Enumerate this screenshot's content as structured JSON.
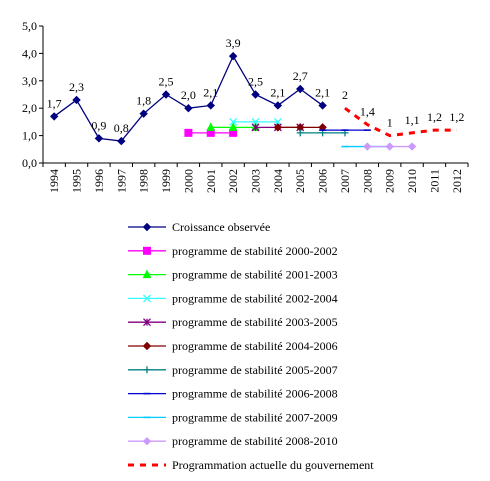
{
  "chart_data": {
    "type": "line",
    "title": "",
    "xlabel": "",
    "ylabel": "",
    "x": [
      "1994",
      "1995",
      "1996",
      "1997",
      "1998",
      "1999",
      "2000",
      "2001",
      "2002",
      "2003",
      "2004",
      "2005",
      "2006",
      "2007",
      "2008",
      "2009",
      "2010",
      "2011",
      "2012"
    ],
    "ylim": [
      0,
      5
    ],
    "yticks": [
      "0,0",
      "1,0",
      "2,0",
      "3,0",
      "4,0",
      "5,0"
    ],
    "grid": false,
    "legend_position": "bottom",
    "series": [
      {
        "name": "Croissance observée",
        "color": "#000080",
        "marker": "diamond",
        "dash": "solid",
        "points": [
          {
            "x": "1994",
            "y": 1.7,
            "label": "1,7"
          },
          {
            "x": "1995",
            "y": 2.3,
            "label": "2,3"
          },
          {
            "x": "1996",
            "y": 0.9,
            "label": "0,9"
          },
          {
            "x": "1997",
            "y": 0.8,
            "label": "0,8"
          },
          {
            "x": "1998",
            "y": 1.8,
            "label": "1,8"
          },
          {
            "x": "1999",
            "y": 2.5,
            "label": "2,5"
          },
          {
            "x": "2000",
            "y": 2.0,
            "label": "2,0"
          },
          {
            "x": "2001",
            "y": 2.1,
            "label": "2,1"
          },
          {
            "x": "2002",
            "y": 3.9,
            "label": "3,9"
          },
          {
            "x": "2003",
            "y": 2.5,
            "label": "2,5"
          },
          {
            "x": "2004",
            "y": 2.1,
            "label": "2,1"
          },
          {
            "x": "2005",
            "y": 2.7,
            "label": "2,7"
          },
          {
            "x": "2006",
            "y": 2.1,
            "label": "2,1"
          }
        ]
      },
      {
        "name": "programme de stabilité 2000-2002",
        "color": "#FF00FF",
        "marker": "square",
        "dash": "solid",
        "points": [
          {
            "x": "2000",
            "y": 1.1
          },
          {
            "x": "2001",
            "y": 1.1
          },
          {
            "x": "2002",
            "y": 1.1
          }
        ]
      },
      {
        "name": "programme de stabilité 2001-2003",
        "color": "#00FF00",
        "marker": "triangle",
        "dash": "solid",
        "points": [
          {
            "x": "2001",
            "y": 1.3
          },
          {
            "x": "2002",
            "y": 1.3
          },
          {
            "x": "2003",
            "y": 1.3
          }
        ]
      },
      {
        "name": "programme de stabilité 2002-2004",
        "color": "#33FFFF",
        "marker": "x",
        "dash": "solid",
        "points": [
          {
            "x": "2002",
            "y": 1.5
          },
          {
            "x": "2003",
            "y": 1.5
          },
          {
            "x": "2004",
            "y": 1.5
          }
        ]
      },
      {
        "name": "programme de stabilité 2003-2005",
        "color": "#800080",
        "marker": "star",
        "dash": "solid",
        "points": [
          {
            "x": "2003",
            "y": 1.3
          },
          {
            "x": "2004",
            "y": 1.3
          },
          {
            "x": "2005",
            "y": 1.3
          }
        ]
      },
      {
        "name": "programme de stabilité 2004-2006",
        "color": "#800000",
        "marker": "diamond",
        "dash": "solid",
        "points": [
          {
            "x": "2004",
            "y": 1.3
          },
          {
            "x": "2005",
            "y": 1.3
          },
          {
            "x": "2006",
            "y": 1.3
          }
        ]
      },
      {
        "name": "programme de stabilité 2005-2007",
        "color": "#008080",
        "marker": "plus",
        "dash": "solid",
        "points": [
          {
            "x": "2005",
            "y": 1.1
          },
          {
            "x": "2006",
            "y": 1.1
          },
          {
            "x": "2007",
            "y": 1.1
          }
        ]
      },
      {
        "name": "programme de stabilité 2006-2008",
        "color": "#0000CC",
        "marker": "dash",
        "dash": "solid",
        "points": [
          {
            "x": "2006",
            "y": 1.2
          },
          {
            "x": "2007",
            "y": 1.2
          },
          {
            "x": "2008",
            "y": 1.2
          }
        ]
      },
      {
        "name": "programme de stabilité 2007-2009",
        "color": "#00CCFF",
        "marker": "dash",
        "dash": "solid",
        "points": [
          {
            "x": "2007",
            "y": 0.6
          },
          {
            "x": "2008",
            "y": 0.6
          },
          {
            "x": "2009",
            "y": 0.6
          }
        ]
      },
      {
        "name": "programme de stabilité 2008-2010",
        "color": "#CC99FF",
        "marker": "diamond",
        "dash": "solid",
        "points": [
          {
            "x": "2008",
            "y": 0.6
          },
          {
            "x": "2009",
            "y": 0.6
          },
          {
            "x": "2010",
            "y": 0.6
          }
        ]
      },
      {
        "name": "Programmation actuelle du gouvernement",
        "color": "#FF0000",
        "marker": "none",
        "dash": "dashed",
        "points": [
          {
            "x": "2007",
            "y": 2.0,
            "label": "2"
          },
          {
            "x": "2008",
            "y": 1.4,
            "label": "1,4"
          },
          {
            "x": "2009",
            "y": 1.0,
            "label": "1"
          },
          {
            "x": "2010",
            "y": 1.1,
            "label": "1,1"
          },
          {
            "x": "2011",
            "y": 1.2,
            "label": "1,2"
          },
          {
            "x": "2012",
            "y": 1.2,
            "label": "1,2"
          }
        ]
      }
    ]
  }
}
